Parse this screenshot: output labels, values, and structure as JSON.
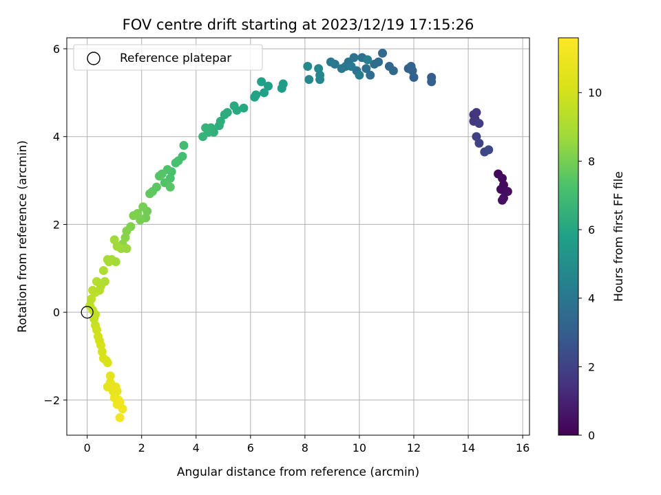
{
  "chart_data": {
    "type": "scatter",
    "title": "FOV centre drift starting at 2023/12/19 17:15:26",
    "xlabel": "Angular distance from reference (arcmin)",
    "ylabel": "Rotation from reference (arcmin)",
    "xlim": [
      -0.75,
      16.25
    ],
    "ylim": [
      -2.8,
      6.25
    ],
    "xticks": [
      0,
      2,
      4,
      6,
      8,
      10,
      12,
      14,
      16
    ],
    "yticks": [
      -2,
      0,
      2,
      4,
      6
    ],
    "xtick_labels": [
      "0",
      "2",
      "4",
      "6",
      "8",
      "10",
      "12",
      "14",
      "16"
    ],
    "ytick_labels": [
      "−2",
      "0",
      "2",
      "4",
      "6"
    ],
    "grid": true,
    "legend": {
      "placement": "top-left",
      "entries": [
        "Reference platepar"
      ]
    },
    "reference_point": {
      "name": "Reference platepar",
      "x": 0,
      "y": 0,
      "marker": "open-circle"
    },
    "colorbar": {
      "label": "Hours from first FF file",
      "colormap": "viridis",
      "range": [
        0,
        11.6
      ],
      "ticks": [
        0,
        2,
        4,
        6,
        8,
        10
      ],
      "tick_labels": [
        "0",
        "2",
        "4",
        "6",
        "8",
        "10"
      ]
    },
    "series": [
      {
        "points": [
          [
            15.1,
            3.15,
            0.2
          ],
          [
            15.25,
            3.05,
            0.3
          ],
          [
            15.3,
            2.9,
            0.3
          ],
          [
            15.35,
            2.75,
            0.4
          ],
          [
            15.2,
            2.8,
            0.3
          ],
          [
            15.3,
            2.6,
            0.4
          ],
          [
            15.45,
            2.75,
            0.35
          ],
          [
            15.25,
            2.55,
            0.45
          ],
          [
            14.2,
            4.5,
            1.5
          ],
          [
            14.25,
            4.4,
            1.5
          ],
          [
            14.3,
            4.55,
            1.6
          ],
          [
            14.2,
            4.35,
            1.7
          ],
          [
            14.4,
            4.3,
            1.8
          ],
          [
            14.3,
            4.0,
            1.9
          ],
          [
            14.4,
            3.85,
            2.0
          ],
          [
            14.6,
            3.65,
            2.1
          ],
          [
            14.75,
            3.7,
            2.2
          ],
          [
            12.65,
            5.35,
            3.0
          ],
          [
            12.65,
            5.25,
            3.05
          ],
          [
            12.0,
            5.35,
            3.1
          ],
          [
            11.95,
            5.5,
            3.15
          ],
          [
            11.8,
            5.55,
            3.2
          ],
          [
            11.9,
            5.6,
            3.25
          ],
          [
            11.25,
            5.5,
            3.4
          ],
          [
            11.1,
            5.6,
            3.45
          ],
          [
            10.85,
            5.9,
            3.5
          ],
          [
            10.7,
            5.7,
            3.55
          ],
          [
            10.55,
            5.65,
            3.6
          ],
          [
            10.4,
            5.4,
            3.65
          ],
          [
            10.25,
            5.55,
            3.7
          ],
          [
            10.1,
            5.8,
            3.75
          ],
          [
            9.9,
            5.5,
            3.8
          ],
          [
            9.8,
            5.8,
            3.85
          ],
          [
            9.6,
            5.7,
            3.9
          ],
          [
            9.5,
            5.6,
            3.95
          ],
          [
            9.35,
            5.55,
            4.0
          ],
          [
            9.1,
            5.65,
            4.05
          ],
          [
            8.95,
            5.7,
            4.1
          ],
          [
            9.7,
            5.6,
            4.15
          ],
          [
            10.0,
            5.4,
            4.2
          ],
          [
            10.3,
            5.75,
            4.25
          ],
          [
            8.55,
            5.3,
            4.6
          ],
          [
            8.55,
            5.4,
            4.65
          ],
          [
            8.5,
            5.55,
            4.7
          ],
          [
            8.15,
            5.3,
            4.75
          ],
          [
            8.1,
            5.6,
            4.8
          ],
          [
            7.2,
            5.2,
            5.6
          ],
          [
            7.15,
            5.1,
            5.65
          ],
          [
            6.65,
            5.15,
            5.7
          ],
          [
            6.5,
            5.0,
            5.75
          ],
          [
            6.4,
            5.25,
            5.8
          ],
          [
            6.2,
            4.95,
            5.85
          ],
          [
            6.15,
            4.9,
            5.9
          ],
          [
            5.75,
            4.65,
            6.1
          ],
          [
            5.5,
            4.6,
            6.15
          ],
          [
            5.4,
            4.7,
            6.2
          ],
          [
            5.15,
            4.55,
            6.25
          ],
          [
            5.05,
            4.5,
            6.3
          ],
          [
            4.9,
            4.35,
            6.35
          ],
          [
            4.85,
            4.25,
            6.4
          ],
          [
            4.65,
            4.1,
            6.45
          ],
          [
            4.55,
            4.2,
            6.5
          ],
          [
            4.45,
            4.1,
            6.55
          ],
          [
            4.35,
            4.2,
            6.6
          ],
          [
            4.25,
            4.0,
            6.65
          ],
          [
            3.55,
            3.8,
            7.0
          ],
          [
            3.5,
            3.55,
            7.05
          ],
          [
            3.35,
            3.45,
            7.1
          ],
          [
            3.25,
            3.4,
            7.15
          ],
          [
            3.1,
            3.2,
            7.2
          ],
          [
            3.05,
            3.05,
            7.25
          ],
          [
            2.95,
            3.25,
            7.3
          ],
          [
            2.85,
            2.95,
            7.35
          ],
          [
            2.75,
            3.15,
            7.4
          ],
          [
            2.65,
            3.1,
            7.45
          ],
          [
            3.05,
            2.85,
            7.5
          ],
          [
            2.55,
            2.85,
            7.55
          ],
          [
            2.4,
            2.75,
            7.6
          ],
          [
            2.3,
            2.7,
            7.65
          ],
          [
            2.2,
            2.3,
            7.9
          ],
          [
            2.15,
            2.15,
            7.95
          ],
          [
            2.05,
            2.4,
            8.0
          ],
          [
            1.95,
            2.1,
            8.05
          ],
          [
            1.85,
            2.25,
            8.1
          ],
          [
            1.7,
            2.2,
            8.15
          ],
          [
            1.6,
            1.95,
            8.2
          ],
          [
            1.45,
            1.85,
            8.25
          ],
          [
            1.4,
            1.7,
            8.3
          ],
          [
            1.3,
            1.55,
            8.35
          ],
          [
            1.45,
            1.45,
            8.6
          ],
          [
            1.25,
            1.45,
            8.65
          ],
          [
            1.1,
            1.5,
            8.7
          ],
          [
            1.0,
            1.65,
            8.75
          ],
          [
            1.05,
            1.15,
            8.8
          ],
          [
            0.9,
            1.2,
            8.85
          ],
          [
            0.8,
            1.15,
            8.9
          ],
          [
            0.75,
            1.2,
            8.95
          ],
          [
            0.6,
            0.95,
            9.1
          ],
          [
            0.65,
            0.7,
            9.15
          ],
          [
            0.5,
            0.6,
            9.2
          ],
          [
            0.35,
            0.7,
            9.25
          ],
          [
            0.45,
            0.5,
            9.3
          ],
          [
            0.3,
            0.45,
            9.35
          ],
          [
            0.2,
            0.5,
            9.4
          ],
          [
            0.15,
            0.3,
            9.45
          ],
          [
            0.1,
            0.15,
            9.5
          ],
          [
            0.2,
            0.05,
            9.55
          ],
          [
            0.3,
            -0.05,
            9.6
          ],
          [
            0.25,
            -0.15,
            9.65
          ],
          [
            0.3,
            -0.3,
            9.7
          ],
          [
            0.35,
            -0.4,
            9.9
          ],
          [
            0.4,
            -0.55,
            9.95
          ],
          [
            0.45,
            -0.65,
            10.0
          ],
          [
            0.5,
            -0.75,
            10.05
          ],
          [
            0.55,
            -0.9,
            10.1
          ],
          [
            0.6,
            -1.05,
            10.15
          ],
          [
            0.7,
            -1.1,
            10.2
          ],
          [
            0.75,
            -1.15,
            10.25
          ],
          [
            0.85,
            -1.45,
            10.6
          ],
          [
            0.85,
            -1.6,
            10.65
          ],
          [
            0.75,
            -1.7,
            10.7
          ],
          [
            0.95,
            -1.8,
            10.75
          ],
          [
            1.05,
            -1.7,
            10.8
          ],
          [
            1.1,
            -1.8,
            10.85
          ],
          [
            1.0,
            -1.95,
            10.9
          ],
          [
            1.15,
            -2.0,
            10.95
          ],
          [
            1.1,
            -2.1,
            11.0
          ],
          [
            1.2,
            -2.05,
            11.05
          ],
          [
            1.3,
            -2.2,
            11.1
          ],
          [
            1.2,
            -2.4,
            11.15
          ]
        ]
      }
    ]
  }
}
